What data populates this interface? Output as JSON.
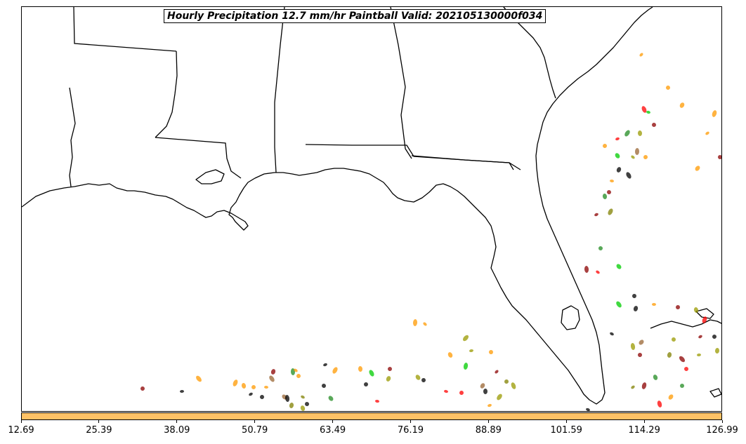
{
  "title": "Hourly Precipitation 12.7 mm/hr Paintball Valid: 202105130000f034",
  "colorbar": {
    "color": "#ffc266",
    "ticks": [
      "12.69",
      "25.39",
      "38.09",
      "50.79",
      "63.49",
      "76.19",
      "88.89",
      "101.59",
      "114.29",
      "126.99"
    ]
  },
  "member_colors": [
    "#000000",
    "#ff9900",
    "#ff0000",
    "#00cc00",
    "#8b0000",
    "#999900",
    "#228b22",
    "#996633",
    "#808000"
  ]
}
